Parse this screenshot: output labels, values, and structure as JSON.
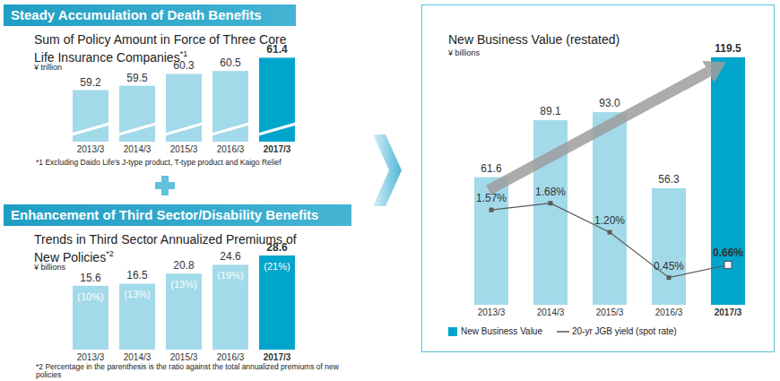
{
  "chart_data": [
    {
      "type": "bar",
      "heading": "Steady Accumulation of Death Benefits",
      "title": "Sum of Policy Amount in Force of Three Core Life Insurance Companies",
      "title_note": "*1",
      "unit": "¥ trillion",
      "categories": [
        "2013/3",
        "2014/3",
        "2015/3",
        "2016/3",
        "2017/3"
      ],
      "values": [
        59.2,
        59.5,
        60.3,
        60.5,
        61.4
      ],
      "colors": [
        "#a2dae9",
        "#a2dae9",
        "#a2dae9",
        "#a2dae9",
        "#00a5cc"
      ],
      "ylim": [
        55.7,
        62.4
      ],
      "tick_labels": "x",
      "data_labels": true,
      "footnote": "*1 Excluding Daido Life's J-type product, T-type product and Kaigo Relief"
    },
    {
      "type": "bar",
      "heading": "Enhancement of Third Sector/Disability Benefits",
      "title": "Trends in Third Sector Annualized Premiums of New Policies",
      "title_note": "*2",
      "unit": "¥ billions",
      "categories": [
        "2013/3",
        "2014/3",
        "2015/3",
        "2016/3",
        "2017/3"
      ],
      "values": [
        15.6,
        16.5,
        20.8,
        24.6,
        28.6
      ],
      "ratio_labels": [
        "(10%)",
        "(13%)",
        "(13%)",
        "(19%)",
        "(21%)"
      ],
      "colors": [
        "#a2dae9",
        "#a2dae9",
        "#a2dae9",
        "#a2dae9",
        "#00a5cc"
      ],
      "ylim": [
        -11.8,
        33.6
      ],
      "tick_labels": "x",
      "data_labels": true,
      "footnote": "*2 Percentage in the parenthesis is the ratio against the total annualized premiums of new policies"
    },
    {
      "type": "bar",
      "title": "New Business Value (restated)",
      "unit": "¥ billions",
      "categories": [
        "2013/3",
        "2014/3",
        "2015/3",
        "2016/3",
        "2017/3"
      ],
      "series": [
        {
          "name": "New Business Value",
          "type": "bar",
          "colors": [
            "#a2dae9",
            "#a2dae9",
            "#a2dae9",
            "#a2dae9",
            "#00a5cc"
          ],
          "values": [
            61.6,
            89.1,
            93.0,
            56.3,
            119.5
          ],
          "value_labels": [
            "61.6",
            "89.1",
            "93.0",
            "56.3",
            "119.5"
          ]
        },
        {
          "name": "20-yr JGB yield (spot rate)",
          "type": "line",
          "axis": "y2",
          "color": "#5a5a5a",
          "marker": "square",
          "values": [
            1.57,
            1.68,
            1.2,
            0.45,
            0.66
          ],
          "value_labels": [
            "1.57%",
            "1.68%",
            "1.20%",
            "0.45%",
            "0.66%"
          ]
        }
      ],
      "ylim": [
        0,
        125.5
      ],
      "y2lim": [
        0,
        4.3
      ],
      "tick_labels": "x",
      "data_labels": true
    }
  ]
}
